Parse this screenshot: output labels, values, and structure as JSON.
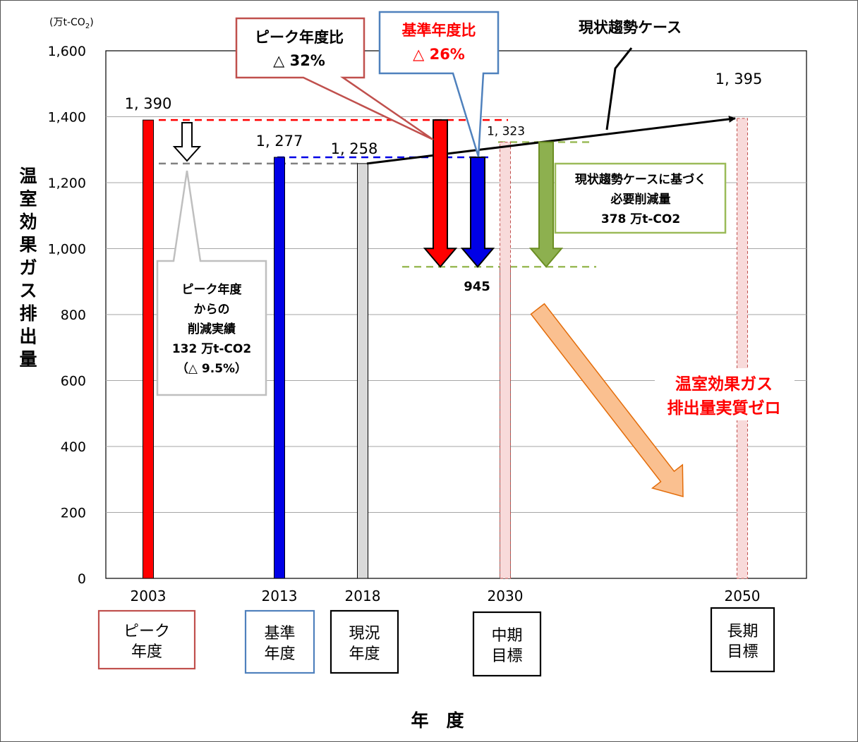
{
  "chart_data": {
    "type": "bar",
    "unit_label": "(万t-CO",
    "unit_sub": "2",
    "unit_close": ")",
    "ylabel": "温室効果ガス排出量",
    "xlabel": "年　度",
    "ylim": [
      0,
      1600
    ],
    "yticks": [
      0,
      200,
      400,
      600,
      800,
      1000,
      1200,
      1400,
      1600
    ],
    "ytick_labels": [
      "0",
      "200",
      "400",
      "600",
      "800",
      "1,000",
      "1,200",
      "1,400",
      "1,600"
    ],
    "grid": true,
    "categories": [
      "2003",
      "2013",
      "2018",
      "2030",
      "2050"
    ],
    "bars": [
      {
        "year": "2003",
        "value": 1390,
        "label": "1, 390",
        "color": "#ff0000"
      },
      {
        "year": "2013",
        "value": 1277,
        "label": "1, 277",
        "color": "#0000e6"
      },
      {
        "year": "2018",
        "value": 1258,
        "label": "1, 258",
        "color": "#d9d9d9"
      },
      {
        "year": "2030",
        "value": 945,
        "label": "945",
        "color": "#8db04f"
      },
      {
        "year": "2030",
        "value": 1323,
        "label": "1, 323",
        "color": "#f8dada",
        "dashed": true
      },
      {
        "year": "2050",
        "value": 1395,
        "label": "1, 395",
        "color": "#f8dada",
        "dashed": true
      }
    ],
    "trend": {
      "from": [
        "2018",
        1258
      ],
      "to": [
        "2050",
        1395
      ],
      "label": "現状趨勢ケース"
    },
    "category_boxes": [
      {
        "year": "2003",
        "text": [
          "ピーク",
          "年度"
        ],
        "border": "#c0504d"
      },
      {
        "year": "2013",
        "text": [
          "基準",
          "年度"
        ],
        "border": "#4f81bd"
      },
      {
        "year": "2018",
        "text": [
          "現況",
          "年度"
        ],
        "border": "#000000"
      },
      {
        "year": "2030",
        "text": [
          "中期",
          "目標"
        ],
        "border": "#000000"
      },
      {
        "year": "2050",
        "text": [
          "長期",
          "目標"
        ],
        "border": "#000000"
      }
    ],
    "callouts": {
      "peak_ratio": {
        "text": [
          "ピーク年度比",
          "△ 32%"
        ],
        "border": "#c0504d",
        "color": "#000000"
      },
      "base_ratio": {
        "text": [
          "基準年度比",
          "△ 26%"
        ],
        "border": "#4f81bd",
        "color": "#ff0000"
      },
      "reduction_actual": {
        "text": [
          "ピーク年度",
          "からの",
          "削減実績",
          "132 万t-CO2",
          "（△ 9.5%）"
        ],
        "border": "#bfbfbf"
      },
      "needed_reduction": {
        "text": [
          "現状趨勢ケースに基づく",
          "必要削減量",
          "378 万t-CO2"
        ],
        "border": "#9bbb59"
      },
      "net_zero": {
        "text": [
          "温室効果ガス",
          "排出量実質ゼロ"
        ],
        "color": "#ff0000"
      }
    },
    "colors": {
      "red": "#ff0000",
      "blue": "#0000e6",
      "green": "#8db04f",
      "orange": "#fac090",
      "gray_dash": "#808080",
      "green_dash": "#9bbb59"
    }
  }
}
